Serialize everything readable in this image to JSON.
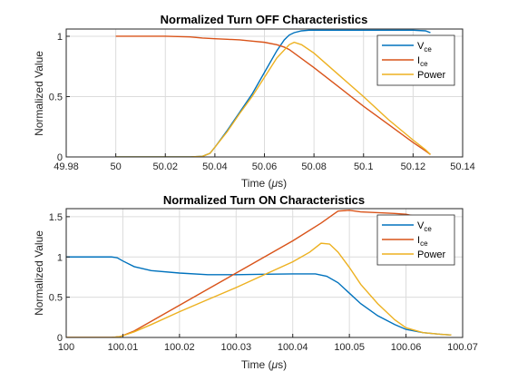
{
  "chart_data": [
    {
      "type": "line",
      "title": "Normalized Turn OFF Characteristics",
      "xlabel_main": "Time (",
      "xlabel_mu": "μ",
      "xlabel_tail": "s)",
      "ylabel": "Normalized Value",
      "xlim": [
        49.98,
        50.14
      ],
      "ylim": [
        0,
        1.06
      ],
      "xticks": [
        49.98,
        50,
        50.02,
        50.04,
        50.06,
        50.08,
        50.1,
        50.12,
        50.14
      ],
      "xtick_labels": [
        "49.98",
        "50",
        "50.02",
        "50.04",
        "50.06",
        "50.08",
        "50.1",
        "50.12",
        "50.14"
      ],
      "yticks": [
        0,
        0.5,
        1
      ],
      "ytick_labels": [
        "0",
        "0.5",
        "1"
      ],
      "grid": true,
      "legend_position": "top-right",
      "series": [
        {
          "name": "V",
          "subscript": "ce",
          "color": "#0072BD",
          "x": [
            50,
            50.02,
            50.03,
            50.035,
            50.038,
            50.04,
            50.045,
            50.05,
            50.055,
            50.06,
            50.065,
            50.068,
            50.07,
            50.072,
            50.075,
            50.078,
            50.08,
            50.09,
            50.1,
            50.11,
            50.12,
            50.125,
            50.127
          ],
          "y": [
            0,
            0,
            0,
            0.005,
            0.03,
            0.08,
            0.22,
            0.37,
            0.52,
            0.7,
            0.88,
            0.97,
            1.01,
            1.03,
            1.045,
            1.05,
            1.05,
            1.05,
            1.05,
            1.05,
            1.05,
            1.045,
            1.03
          ]
        },
        {
          "name": "I",
          "subscript": "ce",
          "color": "#D95319",
          "x": [
            50,
            50.02,
            50.03,
            50.035,
            50.04,
            50.045,
            50.05,
            50.055,
            50.06,
            50.065,
            50.068,
            50.07,
            50.08,
            50.09,
            50.1,
            50.11,
            50.12,
            50.125,
            50.127
          ],
          "y": [
            1,
            1,
            0.995,
            0.985,
            0.98,
            0.975,
            0.97,
            0.96,
            0.95,
            0.93,
            0.91,
            0.89,
            0.74,
            0.58,
            0.42,
            0.27,
            0.12,
            0.05,
            0.02
          ]
        },
        {
          "name": "Power",
          "subscript": "",
          "color": "#EDB120",
          "x": [
            50,
            50.02,
            50.03,
            50.035,
            50.038,
            50.04,
            50.045,
            50.05,
            50.055,
            50.06,
            50.065,
            50.07,
            50.072,
            50.075,
            50.08,
            50.09,
            50.1,
            50.11,
            50.12,
            50.125,
            50.127
          ],
          "y": [
            0,
            0,
            0,
            0.005,
            0.03,
            0.08,
            0.21,
            0.36,
            0.5,
            0.66,
            0.82,
            0.93,
            0.95,
            0.93,
            0.86,
            0.68,
            0.5,
            0.31,
            0.14,
            0.06,
            0.02
          ]
        }
      ]
    },
    {
      "type": "line",
      "title": "Normalized Turn ON Characteristics",
      "xlabel_main": "Time (",
      "xlabel_mu": "μ",
      "xlabel_tail": "s)",
      "ylabel": "Normalized Value",
      "xlim": [
        100,
        100.07
      ],
      "ylim": [
        0,
        1.6
      ],
      "xticks": [
        100,
        100.01,
        100.02,
        100.03,
        100.04,
        100.05,
        100.06,
        100.07
      ],
      "xtick_labels": [
        "100",
        "100.01",
        "100.02",
        "100.03",
        "100.04",
        "100.05",
        "100.06",
        "100.07"
      ],
      "yticks": [
        0,
        0.5,
        1,
        1.5
      ],
      "ytick_labels": [
        "0",
        "0.5",
        "1",
        "1.5"
      ],
      "grid": true,
      "legend_position": "top-right",
      "series": [
        {
          "name": "V",
          "subscript": "ce",
          "color": "#0072BD",
          "x": [
            100,
            100.005,
            100.008,
            100.009,
            100.01,
            100.012,
            100.015,
            100.02,
            100.025,
            100.03,
            100.035,
            100.04,
            100.044,
            100.046,
            100.048,
            100.05,
            100.052,
            100.055,
            100.058,
            100.06,
            100.063,
            100.066,
            100.068
          ],
          "y": [
            1,
            1,
            1,
            0.99,
            0.95,
            0.88,
            0.83,
            0.8,
            0.78,
            0.78,
            0.785,
            0.79,
            0.79,
            0.76,
            0.68,
            0.55,
            0.42,
            0.27,
            0.16,
            0.1,
            0.06,
            0.04,
            0.03
          ]
        },
        {
          "name": "I",
          "subscript": "ce",
          "color": "#D95319",
          "x": [
            100,
            100.008,
            100.0095,
            100.012,
            100.015,
            100.02,
            100.025,
            100.03,
            100.035,
            100.04,
            100.045,
            100.047,
            100.048,
            100.05,
            100.052,
            100.055,
            100.058,
            100.06,
            100.062,
            100.065,
            100.068
          ],
          "y": [
            0,
            0,
            0.01,
            0.08,
            0.2,
            0.4,
            0.6,
            0.8,
            1.0,
            1.2,
            1.42,
            1.52,
            1.57,
            1.58,
            1.56,
            1.55,
            1.54,
            1.53,
            1.5,
            1.46,
            1.44
          ]
        },
        {
          "name": "Power",
          "subscript": "",
          "color": "#EDB120",
          "x": [
            100,
            100.008,
            100.0095,
            100.012,
            100.015,
            100.02,
            100.025,
            100.03,
            100.035,
            100.04,
            100.043,
            100.045,
            100.0465,
            100.048,
            100.05,
            100.052,
            100.055,
            100.058,
            100.06,
            100.063,
            100.066,
            100.068
          ],
          "y": [
            0,
            0,
            0.01,
            0.07,
            0.16,
            0.32,
            0.47,
            0.62,
            0.78,
            0.94,
            1.06,
            1.17,
            1.16,
            1.06,
            0.87,
            0.66,
            0.42,
            0.22,
            0.12,
            0.06,
            0.04,
            0.03
          ]
        }
      ]
    }
  ]
}
